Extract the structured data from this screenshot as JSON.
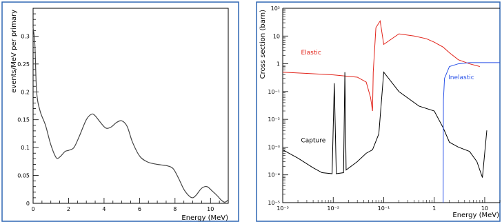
{
  "colors": {
    "frame": "#2f66b3",
    "axis": "#000000",
    "elastic": "#e2231a",
    "capture": "#000000",
    "inelastic": "#2a52e8",
    "spectrum": "#444444"
  },
  "chart_data": [
    {
      "type": "line",
      "xlabel": "Energy (MeV)",
      "ylabel": "events/MeV per primary",
      "xlim": [
        0,
        11
      ],
      "ylim": [
        0,
        0.35
      ],
      "x_ticks": [
        0,
        2,
        4,
        6,
        8,
        10
      ],
      "y_ticks": [
        0,
        0.05,
        0.1,
        0.15,
        0.2,
        0.25,
        0.3
      ],
      "grid": false,
      "series": [
        {
          "x": [
            0,
            0.1,
            0.2,
            0.4,
            0.7,
            1.0,
            1.3,
            1.5,
            1.8,
            2.0,
            2.3,
            2.6,
            3.0,
            3.3,
            3.5,
            3.8,
            4.1,
            4.4,
            4.7,
            5.0,
            5.3,
            5.6,
            6.0,
            6.4,
            6.8,
            7.2,
            7.6,
            7.9,
            8.2,
            8.5,
            8.8,
            9.0,
            9.2,
            9.5,
            9.8,
            10.1,
            10.4,
            10.6,
            10.8,
            11.0
          ],
          "y": [
            0.315,
            0.285,
            0.2,
            0.165,
            0.14,
            0.105,
            0.082,
            0.083,
            0.093,
            0.095,
            0.1,
            0.12,
            0.15,
            0.16,
            0.157,
            0.145,
            0.135,
            0.137,
            0.145,
            0.148,
            0.138,
            0.11,
            0.085,
            0.075,
            0.071,
            0.069,
            0.067,
            0.062,
            0.045,
            0.025,
            0.013,
            0.01,
            0.015,
            0.027,
            0.03,
            0.022,
            0.013,
            0.006,
            0.002,
            0.006
          ]
        }
      ]
    },
    {
      "type": "line",
      "xlabel": "Energy (MeV)",
      "ylabel": "Cross section (barn)",
      "xscale": "log",
      "yscale": "log",
      "xlim": [
        0.001,
        20
      ],
      "ylim": [
        1e-05,
        100
      ],
      "x_tick_labels": [
        "10⁻³",
        "10⁻²",
        "10⁻¹",
        "1",
        "10"
      ],
      "y_tick_labels": [
        "10²",
        "10",
        "1",
        "10⁻¹",
        "10⁻²",
        "10⁻³",
        "10⁻⁴",
        "10⁻⁵"
      ],
      "grid": false,
      "series": [
        {
          "name": "Elastic",
          "x": [
            0.001,
            0.003,
            0.01,
            0.03,
            0.045,
            0.055,
            0.06,
            0.062,
            0.07,
            0.085,
            0.1,
            0.2,
            0.4,
            0.7,
            1.0,
            1.5,
            2.0,
            3.0,
            5.0,
            8.0
          ],
          "y": [
            0.5,
            0.45,
            0.4,
            0.33,
            0.22,
            0.06,
            0.02,
            0.5,
            20,
            35,
            5,
            12,
            10,
            8,
            6,
            4,
            2.5,
            1.4,
            1.0,
            0.8
          ]
        },
        {
          "name": "Capture",
          "x": [
            0.001,
            0.002,
            0.004,
            0.006,
            0.0095,
            0.0105,
            0.0115,
            0.016,
            0.017,
            0.018,
            0.03,
            0.045,
            0.06,
            0.08,
            0.1,
            0.2,
            0.5,
            1.0,
            1.5,
            2.0,
            3.0,
            5.0,
            7.0,
            9.0,
            11.0
          ],
          "y": [
            0.0008,
            0.0004,
            0.00018,
            0.00012,
            0.00011,
            0.2,
            0.00011,
            0.00012,
            0.5,
            0.00015,
            0.0003,
            0.0006,
            0.0008,
            0.003,
            0.5,
            0.1,
            0.03,
            0.02,
            0.005,
            0.0015,
            0.001,
            0.0007,
            0.0003,
            8e-05,
            0.004
          ]
        },
        {
          "name": "Inelastic",
          "x": [
            1.5,
            1.52,
            1.6,
            2.0,
            3.0,
            5.0,
            10.0,
            20.0
          ],
          "y": [
            1e-05,
            0.05,
            0.3,
            0.8,
            1.0,
            1.1,
            1.1,
            1.1
          ]
        }
      ]
    }
  ]
}
